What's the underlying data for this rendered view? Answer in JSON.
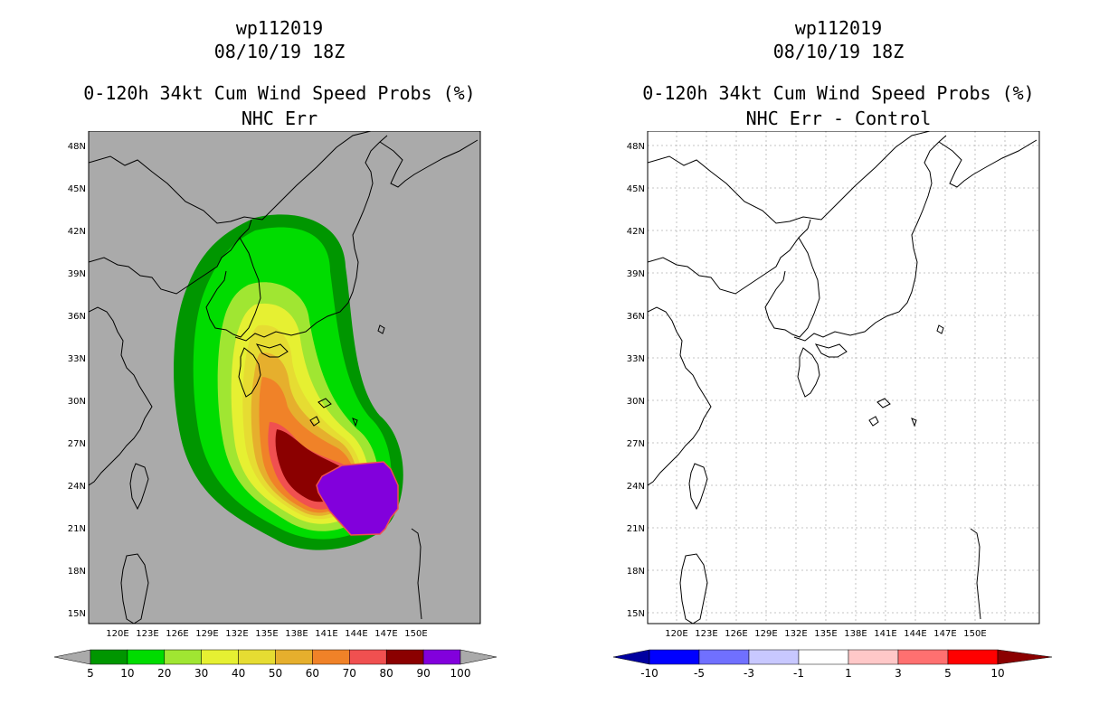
{
  "panels": [
    {
      "id": "left",
      "storm": "wp112019",
      "datetime": "08/10/19 18Z",
      "product": "0-120h 34kt Cum Wind Speed Probs (%)",
      "subtitle": "NHC Err",
      "colorbar": {
        "labels": [
          "5",
          "10",
          "20",
          "30",
          "40",
          "50",
          "60",
          "70",
          "80",
          "90",
          "100"
        ],
        "colors": [
          "#aaaaaa",
          "#009600",
          "#00dc00",
          "#a0e632",
          "#e6f032",
          "#e6dc32",
          "#e6af2d",
          "#f08228",
          "#f05050",
          "#8b0000",
          "#8200dc",
          "#aaaaaa"
        ]
      }
    },
    {
      "id": "right",
      "storm": "wp112019",
      "datetime": "08/10/19 18Z",
      "product": "0-120h 34kt Cum Wind Speed Probs (%)",
      "subtitle": "NHC Err - Control",
      "colorbar": {
        "labels": [
          "-10",
          "-5",
          "-3",
          "-1",
          "1",
          "3",
          "5",
          "10"
        ],
        "colors": [
          "#0000a0",
          "#0000ff",
          "#7070ff",
          "#c8c8ff",
          "#ffffff",
          "#ffc8c8",
          "#ff7070",
          "#ff0000",
          "#8b0000"
        ]
      }
    }
  ],
  "axes": {
    "lat_labels": [
      "48N",
      "45N",
      "42N",
      "39N",
      "36N",
      "33N",
      "30N",
      "27N",
      "24N",
      "21N",
      "18N",
      "15N"
    ],
    "lon_labels": [
      "120E",
      "123E",
      "126E",
      "129E",
      "132E",
      "135E",
      "138E",
      "141E",
      "144E",
      "147E",
      "150E"
    ]
  },
  "colors": {
    "ocean": "#aaaaaa",
    "background": "#ffffff",
    "grid": "#b4b4b4"
  }
}
